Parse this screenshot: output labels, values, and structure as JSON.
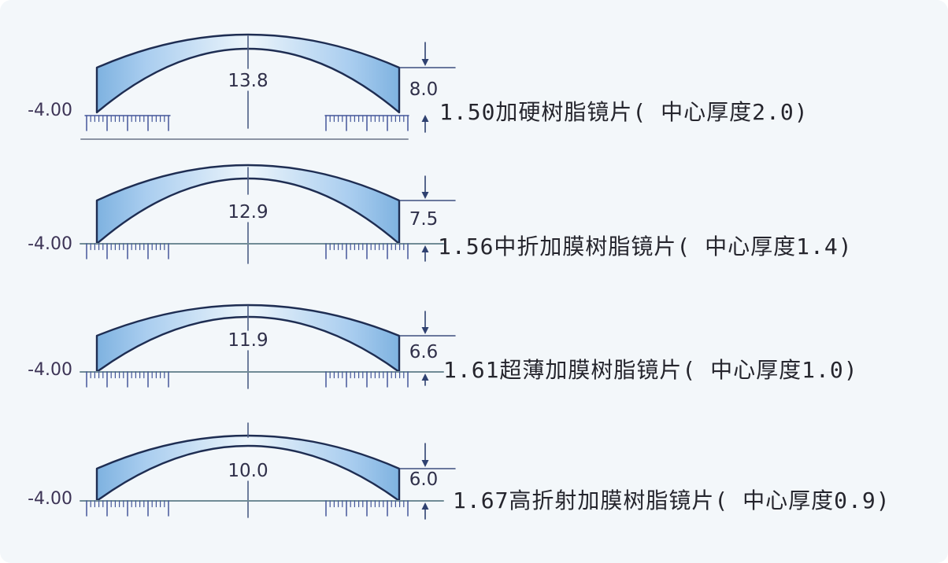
{
  "diagram": {
    "rows": [
      {
        "power": "-4.00",
        "center_value": "13.8",
        "edge_value": "8.0",
        "caption": "1.50加硬树脂镜片( 中心厚度2.0)"
      },
      {
        "power": "-4.00",
        "center_value": "12.9",
        "edge_value": "7.5",
        "caption": "1.56中折加膜树脂镜片( 中心厚度1.4)"
      },
      {
        "power": "-4.00",
        "center_value": "11.9",
        "edge_value": "6.6",
        "caption": "1.61超薄加膜树脂镜片( 中心厚度1.0)"
      },
      {
        "power": "-4.00",
        "center_value": "10.0",
        "edge_value": "6.0",
        "caption": "1.67高折射加膜树脂镜片( 中心厚度0.9)"
      }
    ],
    "colors": {
      "background": "#f3f7fa",
      "lens_outline": "#1e2d52",
      "lens_fill_edge": "#7eb2e0",
      "lens_fill_mid": "#a9cdef",
      "lens_fill_center": "#ecf5fb",
      "ticks": "#44579a",
      "baseline": "#708b96",
      "underline": "#8c94a4",
      "dimension": "#3c4f7e",
      "number_text": "#30304a",
      "caption_text": "#25252d"
    }
  }
}
